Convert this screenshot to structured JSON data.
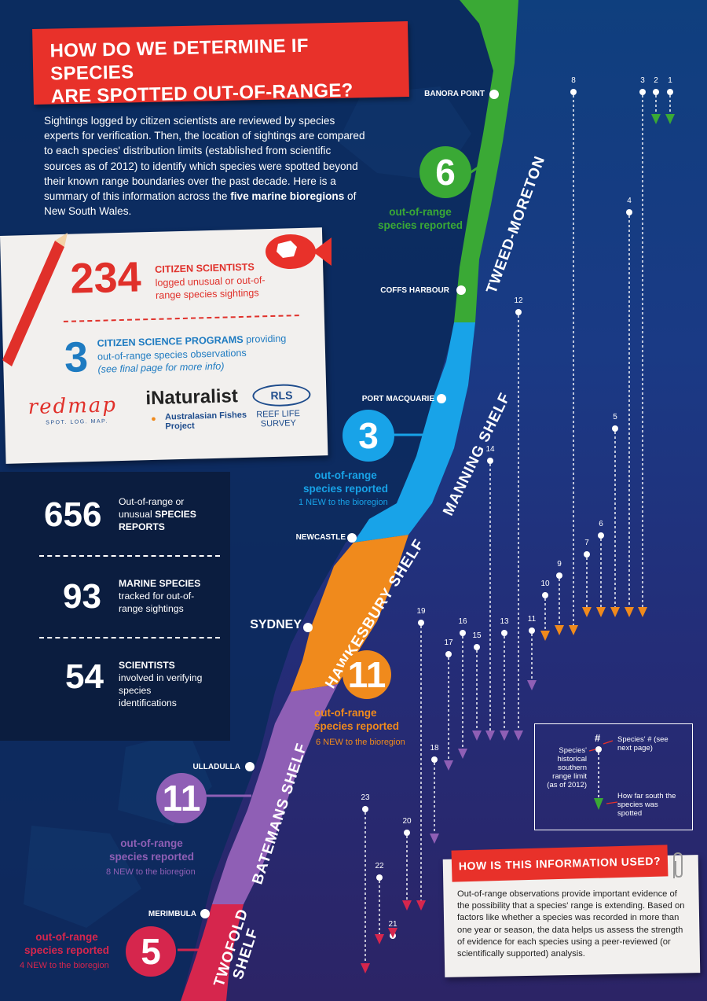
{
  "title": "HOW DO WE DETERMINE IF SPECIES\nARE SPOTTED OUT-OF-RANGE?",
  "intro": {
    "text": "Sightings logged by citizen scientists are reviewed by species experts for verification. Then, the location of sightings are compared to each species' distribution limits (established from scientific sources as of 2012) to identify which species were spotted beyond their known range boundaries over the past decade. Here is a summary of this information across the ",
    "bold": "five marine bioregions",
    "end": " of New South Wales."
  },
  "card": {
    "stat1_num": "234",
    "stat1_bold": "CITIZEN SCIENTISTS",
    "stat1_text": "logged unusual or out-of-range species sightings",
    "stat2_num": "3",
    "stat2_bold": "CITIZEN SCIENCE PROGRAMS",
    "stat2_text": " providing out-of-range species observations",
    "stat2_note": "(see final page for more info)",
    "logo_redmap": "redmap",
    "logo_redmap_tag": "SPOT. LOG. MAP.",
    "logo_inat": "iNaturalist",
    "logo_afp": "Australasian Fishes Project",
    "logo_rls_mark": "RLS",
    "logo_rls": "REEF LIFE SURVEY"
  },
  "lower_stats": [
    {
      "num": "656",
      "bold": "SPECIES",
      "pre": "Out-of-range or unusual ",
      "post": " REPORTS"
    },
    {
      "num": "93",
      "bold": "MARINE SPECIES",
      "pre": "",
      "post": " tracked for out-of-range sightings"
    },
    {
      "num": "54",
      "bold": "SCIENTISTS",
      "pre": "",
      "post": " involved in verifying species identifications"
    }
  ],
  "regions": [
    {
      "name": "TWEED-MORETON",
      "count": "6",
      "label": "out-of-range species reported",
      "note": "",
      "color": "#3aa935"
    },
    {
      "name": "MANNING SHELF",
      "count": "3",
      "label": "out-of-range species reported",
      "note": "1 NEW to the bioregion",
      "color": "#18a3e8"
    },
    {
      "name": "HAWKESBURY SHELF",
      "count": "11",
      "label": "out-of-range species reported",
      "note": "6 NEW to the bioregion",
      "color": "#f08a1c"
    },
    {
      "name": "BATEMANS SHELF",
      "count": "11",
      "label": "out-of-range species reported",
      "note": "8 NEW to the bioregion",
      "color": "#8f5fb5"
    },
    {
      "name": "TWOFOLD SHELF",
      "count": "5",
      "label": "out-of-range species reported",
      "note": "4 NEW to the bioregion",
      "color": "#d6264d"
    }
  ],
  "places": {
    "banora": "BANORA POINT",
    "coffs": "COFFS HARBOUR",
    "portmac": "PORT MACQUARIE",
    "newcastle": "NEWCASTLE",
    "sydney": "SYDNEY",
    "ulladulla": "ULLADULLA",
    "merimbula": "MERIMBULA"
  },
  "species_numbers": [
    "1",
    "2",
    "3",
    "4",
    "5",
    "6",
    "7",
    "8",
    "9",
    "10",
    "11",
    "12",
    "13",
    "14",
    "15",
    "16",
    "17",
    "18",
    "19",
    "20",
    "21",
    "22",
    "23"
  ],
  "legend": {
    "hash": "#",
    "species_num": "Species' # (see next page)",
    "limit": "Species' historical southern range limit (as of 2012)",
    "spotted": "How far south the species was spotted"
  },
  "info": {
    "heading": "HOW IS THIS INFORMATION USED?",
    "body": "Out-of-range observations provide important evidence of the possibility that a species' range is extending. Based on factors like whether a species was recorded in more than one year or season, the data helps us assess the strength of evidence for each species using a peer-reviewed (or scientifically supported) analysis."
  },
  "colors": {
    "accent_red": "#e8312a",
    "tweed": "#3aa935",
    "manning": "#18a3e8",
    "hawkesbury": "#f08a1c",
    "batemans": "#8f5fb5",
    "twofold": "#d6264d"
  }
}
